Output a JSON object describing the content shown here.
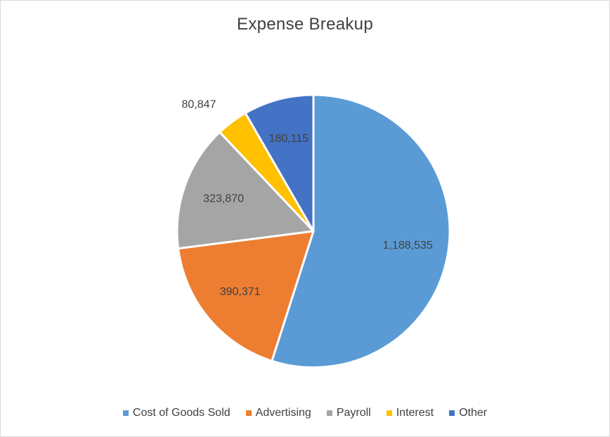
{
  "chart_data": {
    "type": "pie",
    "title": "Expense Breakup",
    "categories": [
      "Cost of Goods Sold",
      "Advertising",
      "Payroll",
      "Interest",
      "Other"
    ],
    "values": [
      1188535,
      390371,
      323870,
      80847,
      180115
    ],
    "data_labels": [
      "1,188,535",
      "390,371",
      "323,870",
      "80,847",
      "180,115"
    ],
    "colors": [
      "#5b9bd5",
      "#ed7d31",
      "#a5a5a5",
      "#ffc000",
      "#4472c4"
    ],
    "legend_position": "bottom",
    "start_angle": "12 o'clock",
    "direction": "clockwise"
  }
}
